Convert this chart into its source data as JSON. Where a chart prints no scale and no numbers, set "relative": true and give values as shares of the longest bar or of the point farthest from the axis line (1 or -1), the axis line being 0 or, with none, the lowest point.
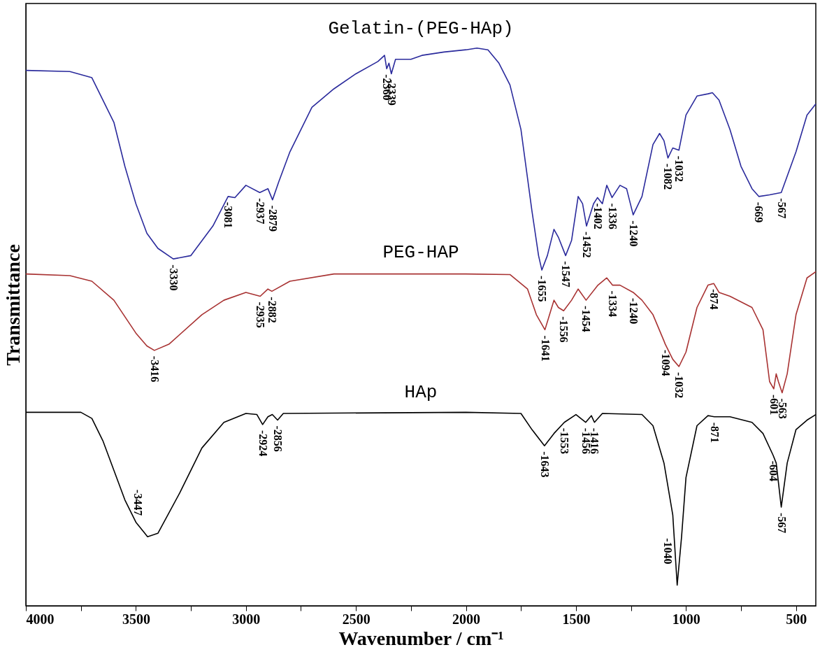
{
  "chart_data": {
    "type": "line",
    "relative": true,
    "xlabel": "Wavenumber / cm⁻¹",
    "ylabel": "Transmittance",
    "xlim": [
      4000,
      410
    ],
    "xticks": [
      4000,
      {
        "value": 3750,
        "label": null
      },
      3500,
      {
        "value": 3250,
        "label": null
      },
      3000,
      {
        "value": 2750,
        "label": null
      },
      2500,
      {
        "value": 2250,
        "label": null
      },
      2000,
      {
        "value": 1750,
        "label": null
      },
      1500,
      {
        "value": 1250,
        "label": null
      },
      1000,
      {
        "value": 750,
        "label": null
      },
      500
    ],
    "grid": false,
    "series": [
      {
        "name": "Gelatin-(PEG-HAp)",
        "color": "#2a2a9c",
        "x": [
          4000,
          3800,
          3700,
          3600,
          3550,
          3500,
          3450,
          3400,
          3330,
          3250,
          3150,
          3081,
          3050,
          3000,
          2937,
          2900,
          2879,
          2850,
          2800,
          2700,
          2600,
          2500,
          2400,
          2370,
          2360,
          2350,
          2339,
          2320,
          2250,
          2200,
          2100,
          2000,
          1950,
          1900,
          1850,
          1800,
          1750,
          1700,
          1670,
          1655,
          1630,
          1600,
          1580,
          1547,
          1520,
          1490,
          1470,
          1452,
          1420,
          1402,
          1380,
          1360,
          1336,
          1300,
          1270,
          1240,
          1200,
          1150,
          1120,
          1100,
          1082,
          1060,
          1032,
          1000,
          950,
          900,
          880,
          850,
          800,
          750,
          700,
          669,
          620,
          567,
          500,
          450,
          410
        ],
        "values": [
          0.96,
          0.958,
          0.947,
          0.867,
          0.788,
          0.721,
          0.668,
          0.641,
          0.622,
          0.628,
          0.681,
          0.734,
          0.732,
          0.754,
          0.741,
          0.748,
          0.728,
          0.761,
          0.814,
          0.894,
          0.927,
          0.954,
          0.976,
          0.987,
          0.963,
          0.973,
          0.954,
          0.98,
          0.98,
          0.987,
          0.993,
          0.997,
          1.0,
          0.997,
          0.973,
          0.934,
          0.854,
          0.708,
          0.628,
          0.602,
          0.628,
          0.675,
          0.661,
          0.628,
          0.655,
          0.734,
          0.721,
          0.681,
          0.721,
          0.732,
          0.721,
          0.754,
          0.732,
          0.754,
          0.748,
          0.701,
          0.734,
          0.827,
          0.847,
          0.834,
          0.803,
          0.821,
          0.817,
          0.88,
          0.914,
          0.918,
          0.92,
          0.907,
          0.854,
          0.788,
          0.748,
          0.734,
          0.737,
          0.741,
          0.814,
          0.88,
          0.9
        ]
      },
      {
        "name": "PEG-HAP",
        "color": "#a83232",
        "x": [
          4000,
          3800,
          3700,
          3600,
          3500,
          3450,
          3416,
          3350,
          3200,
          3100,
          3000,
          2935,
          2900,
          2882,
          2800,
          2600,
          2400,
          2000,
          1800,
          1720,
          1680,
          1641,
          1620,
          1600,
          1580,
          1556,
          1520,
          1490,
          1454,
          1400,
          1360,
          1334,
          1300,
          1240,
          1200,
          1150,
          1100,
          1094,
          1060,
          1032,
          1000,
          950,
          900,
          874,
          850,
          800,
          700,
          650,
          620,
          601,
          590,
          580,
          563,
          540,
          500,
          450,
          410
        ],
        "values": [
          0.595,
          0.592,
          0.582,
          0.548,
          0.489,
          0.466,
          0.458,
          0.469,
          0.522,
          0.548,
          0.562,
          0.555,
          0.568,
          0.564,
          0.582,
          0.595,
          0.595,
          0.595,
          0.594,
          0.568,
          0.522,
          0.495,
          0.522,
          0.548,
          0.535,
          0.529,
          0.548,
          0.568,
          0.548,
          0.575,
          0.588,
          0.575,
          0.575,
          0.562,
          0.548,
          0.522,
          0.475,
          0.469,
          0.442,
          0.429,
          0.455,
          0.535,
          0.575,
          0.578,
          0.562,
          0.555,
          0.535,
          0.495,
          0.402,
          0.389,
          0.416,
          0.402,
          0.382,
          0.416,
          0.522,
          0.588,
          0.599
        ]
      },
      {
        "name": "HAp",
        "color": "#000000",
        "x": [
          4000,
          3750,
          3700,
          3650,
          3600,
          3550,
          3500,
          3447,
          3400,
          3300,
          3200,
          3100,
          3000,
          2950,
          2924,
          2900,
          2880,
          2856,
          2830,
          2000,
          1750,
          1700,
          1643,
          1600,
          1553,
          1500,
          1456,
          1430,
          1416,
          1380,
          1200,
          1150,
          1100,
          1060,
          1040,
          1020,
          1000,
          950,
          900,
          871,
          800,
          700,
          650,
          604,
          590,
          567,
          540,
          500,
          450,
          410
        ],
        "values": [
          0.347,
          0.347,
          0.336,
          0.296,
          0.243,
          0.19,
          0.15,
          0.124,
          0.13,
          0.203,
          0.283,
          0.329,
          0.345,
          0.343,
          0.325,
          0.339,
          0.343,
          0.333,
          0.345,
          0.347,
          0.345,
          0.316,
          0.287,
          0.309,
          0.329,
          0.343,
          0.329,
          0.341,
          0.329,
          0.345,
          0.343,
          0.323,
          0.256,
          0.163,
          0.037,
          0.124,
          0.23,
          0.323,
          0.341,
          0.339,
          0.339,
          0.329,
          0.309,
          0.27,
          0.256,
          0.177,
          0.256,
          0.316,
          0.333,
          0.343
        ]
      }
    ],
    "annotations": [
      {
        "text": "-3330",
        "x": 3330,
        "y": 0.622
      },
      {
        "text": "-3081",
        "x": 3081,
        "y": 0.734
      },
      {
        "text": "-2937",
        "x": 2937,
        "y": 0.741
      },
      {
        "text": "-2879",
        "x": 2879,
        "y": 0.728
      },
      {
        "text": "-2360",
        "x": 2360,
        "y": 0.963
      },
      {
        "text": "-2339",
        "x": 2339,
        "y": 0.954
      },
      {
        "text": "-1655",
        "x": 1655,
        "y": 0.602
      },
      {
        "text": "-1547",
        "x": 1547,
        "y": 0.628
      },
      {
        "text": "-1452",
        "x": 1452,
        "y": 0.681
      },
      {
        "text": "-1402",
        "x": 1402,
        "y": 0.732
      },
      {
        "text": "-1336",
        "x": 1336,
        "y": 0.732
      },
      {
        "text": "-1240",
        "x": 1240,
        "y": 0.701
      },
      {
        "text": "-1082",
        "x": 1082,
        "y": 0.803
      },
      {
        "text": "-1032",
        "x": 1032,
        "y": 0.817
      },
      {
        "text": "-669",
        "x": 669,
        "y": 0.734
      },
      {
        "text": "-567",
        "x": 567,
        "y": 0.741
      },
      {
        "text": "-3416",
        "x": 3416,
        "y": 0.458
      },
      {
        "text": "-2935",
        "x": 2935,
        "y": 0.555
      },
      {
        "text": "-2882",
        "x": 2882,
        "y": 0.564
      },
      {
        "text": "-1641",
        "x": 1641,
        "y": 0.495
      },
      {
        "text": "-1556",
        "x": 1556,
        "y": 0.529
      },
      {
        "text": "-1454",
        "x": 1454,
        "y": 0.548
      },
      {
        "text": "-1334",
        "x": 1334,
        "y": 0.575
      },
      {
        "text": "-1240",
        "x": 1240,
        "y": 0.562
      },
      {
        "text": "-1094",
        "x": 1094,
        "y": 0.469
      },
      {
        "text": "-1032",
        "x": 1032,
        "y": 0.429
      },
      {
        "text": "-874",
        "x": 874,
        "y": 0.578
      },
      {
        "text": "-601",
        "x": 601,
        "y": 0.389
      },
      {
        "text": "-563",
        "x": 563,
        "y": 0.382
      },
      {
        "text": "-3447",
        "x": 3447,
        "y": 0.124
      },
      {
        "text": "-2924",
        "x": 2924,
        "y": 0.325
      },
      {
        "text": "-2856",
        "x": 2856,
        "y": 0.333
      },
      {
        "text": "-1643",
        "x": 1643,
        "y": 0.287
      },
      {
        "text": "-1553",
        "x": 1553,
        "y": 0.329
      },
      {
        "text": "-1456",
        "x": 1456,
        "y": 0.329
      },
      {
        "text": "-1416",
        "x": 1416,
        "y": 0.329
      },
      {
        "text": "-1040",
        "x": 1040,
        "y": 0.037
      },
      {
        "text": "-871",
        "x": 871,
        "y": 0.339
      },
      {
        "text": "-604",
        "x": 604,
        "y": 0.27
      },
      {
        "text": "-567",
        "x": 567,
        "y": 0.177
      }
    ]
  }
}
